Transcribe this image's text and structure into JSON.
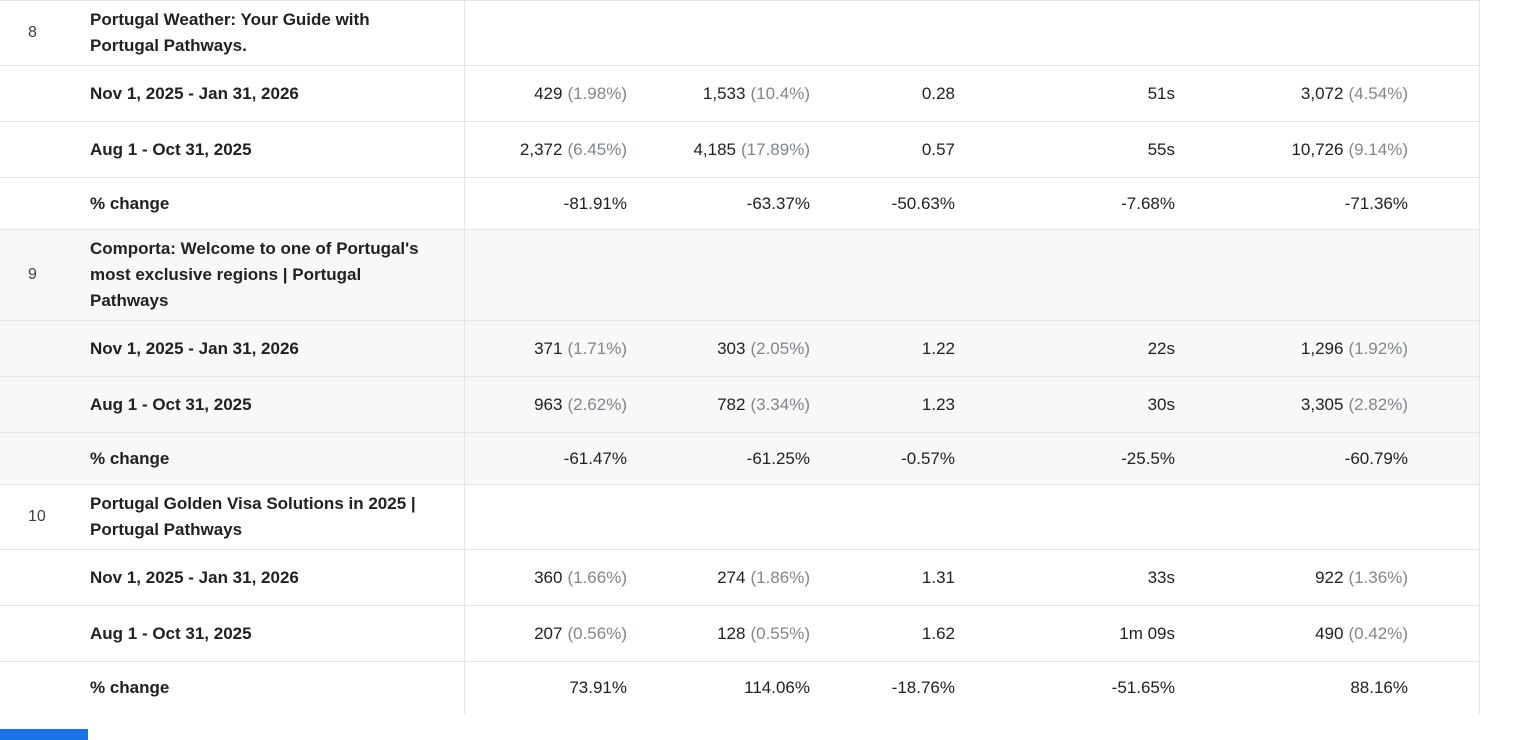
{
  "colors": {
    "text": "#202124",
    "muted_percent": "#80868b",
    "divider": "#e4e5e7",
    "stripe_background": "#f7f8f8",
    "scroll_indicator_blue": "#1a73e8"
  },
  "table": {
    "groups": [
      {
        "index": "8",
        "title": "Portugal Weather: Your Guide with Portugal Pathways.",
        "striped": false,
        "rows": [
          {
            "type": "period",
            "label": "Nov 1, 2025 - Jan 31, 2026",
            "cells": [
              {
                "main": "429",
                "sub": "(1.98%)"
              },
              {
                "main": "1,533",
                "sub": "(10.4%)"
              },
              {
                "main": "0.28",
                "sub": ""
              },
              {
                "main": "51s",
                "sub": ""
              },
              {
                "main": "3,072",
                "sub": "(4.54%)"
              }
            ]
          },
          {
            "type": "period",
            "label": "Aug 1 - Oct 31, 2025",
            "cells": [
              {
                "main": "2,372",
                "sub": "(6.45%)"
              },
              {
                "main": "4,185",
                "sub": "(17.89%)"
              },
              {
                "main": "0.57",
                "sub": ""
              },
              {
                "main": "55s",
                "sub": ""
              },
              {
                "main": "10,726",
                "sub": "(9.14%)"
              }
            ]
          },
          {
            "type": "change",
            "label": "% change",
            "cells": [
              {
                "main": "-81.91%",
                "sub": ""
              },
              {
                "main": "-63.37%",
                "sub": ""
              },
              {
                "main": "-50.63%",
                "sub": ""
              },
              {
                "main": "-7.68%",
                "sub": ""
              },
              {
                "main": "-71.36%",
                "sub": ""
              }
            ]
          }
        ]
      },
      {
        "index": "9",
        "title": "Comporta: Welcome to one of Portugal's most exclusive regions | Portugal Pathways",
        "striped": true,
        "rows": [
          {
            "type": "period",
            "label": "Nov 1, 2025 - Jan 31, 2026",
            "cells": [
              {
                "main": "371",
                "sub": "(1.71%)"
              },
              {
                "main": "303",
                "sub": "(2.05%)"
              },
              {
                "main": "1.22",
                "sub": ""
              },
              {
                "main": "22s",
                "sub": ""
              },
              {
                "main": "1,296",
                "sub": "(1.92%)"
              }
            ]
          },
          {
            "type": "period",
            "label": "Aug 1 - Oct 31, 2025",
            "cells": [
              {
                "main": "963",
                "sub": "(2.62%)"
              },
              {
                "main": "782",
                "sub": "(3.34%)"
              },
              {
                "main": "1.23",
                "sub": ""
              },
              {
                "main": "30s",
                "sub": ""
              },
              {
                "main": "3,305",
                "sub": "(2.82%)"
              }
            ]
          },
          {
            "type": "change",
            "label": "% change",
            "cells": [
              {
                "main": "-61.47%",
                "sub": ""
              },
              {
                "main": "-61.25%",
                "sub": ""
              },
              {
                "main": "-0.57%",
                "sub": ""
              },
              {
                "main": "-25.5%",
                "sub": ""
              },
              {
                "main": "-60.79%",
                "sub": ""
              }
            ]
          }
        ]
      },
      {
        "index": "10",
        "title": "Portugal Golden Visa Solutions in 2025 | Portugal Pathways",
        "striped": false,
        "rows": [
          {
            "type": "period",
            "label": "Nov 1, 2025 - Jan 31, 2026",
            "cells": [
              {
                "main": "360",
                "sub": "(1.66%)"
              },
              {
                "main": "274",
                "sub": "(1.86%)"
              },
              {
                "main": "1.31",
                "sub": ""
              },
              {
                "main": "33s",
                "sub": ""
              },
              {
                "main": "922",
                "sub": "(1.36%)"
              }
            ]
          },
          {
            "type": "period",
            "label": "Aug 1 - Oct 31, 2025",
            "cells": [
              {
                "main": "207",
                "sub": "(0.56%)"
              },
              {
                "main": "128",
                "sub": "(0.55%)"
              },
              {
                "main": "1.62",
                "sub": ""
              },
              {
                "main": "1m 09s",
                "sub": ""
              },
              {
                "main": "490",
                "sub": "(0.42%)"
              }
            ]
          },
          {
            "type": "change",
            "label": "% change",
            "cells": [
              {
                "main": "73.91%",
                "sub": ""
              },
              {
                "main": "114.06%",
                "sub": ""
              },
              {
                "main": "-18.76%",
                "sub": ""
              },
              {
                "main": "-51.65%",
                "sub": ""
              },
              {
                "main": "88.16%",
                "sub": ""
              }
            ]
          }
        ]
      }
    ]
  }
}
